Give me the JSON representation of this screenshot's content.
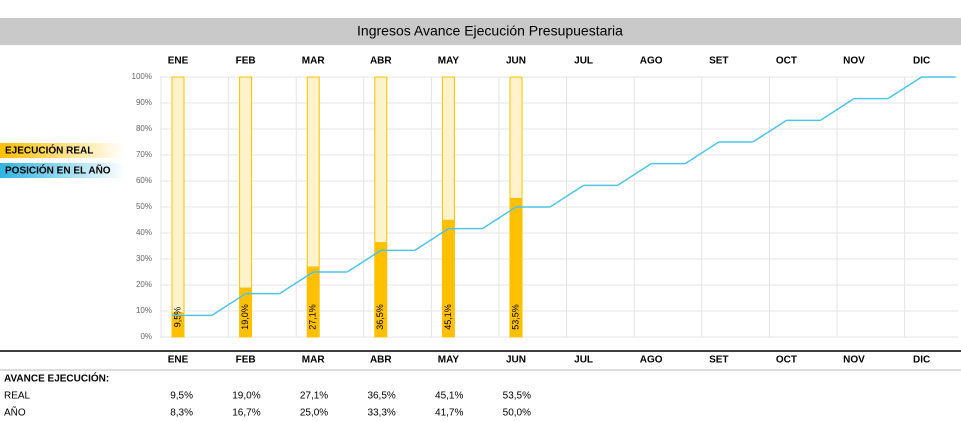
{
  "chart_data": {
    "type": "bar_line",
    "title": "Ingresos Avance Ejecución Presupuestaria",
    "categories": [
      "ENE",
      "FEB",
      "MAR",
      "ABR",
      "MAY",
      "JUN",
      "JUL",
      "AGO",
      "SET",
      "OCT",
      "NOV",
      "DIC"
    ],
    "series": [
      {
        "name": "EJECUCIÓN REAL",
        "color": "#ffc000",
        "values": [
          9.5,
          19.0,
          27.1,
          36.5,
          45.1,
          53.5,
          null,
          null,
          null,
          null,
          null,
          null
        ],
        "value_labels": [
          "9,5%",
          "19,0%",
          "27,1%",
          "36,5%",
          "45,1%",
          "53,5%",
          null,
          null,
          null,
          null,
          null,
          null
        ]
      },
      {
        "name": "POSICIÓN EN EL AÑO",
        "color": "#4fc3e8",
        "values": [
          8.3,
          16.7,
          25.0,
          33.3,
          41.7,
          50.0,
          58.3,
          66.7,
          75.0,
          83.3,
          91.7,
          100
        ]
      }
    ],
    "ylim": [
      0,
      100
    ],
    "yticks": [
      {
        "value": 0,
        "label": "0%"
      },
      {
        "value": 10,
        "label": "10%"
      },
      {
        "value": 20,
        "label": "20%"
      },
      {
        "value": 30,
        "label": "30%"
      },
      {
        "value": 40,
        "label": "40%"
      },
      {
        "value": 50,
        "label": "50%"
      },
      {
        "value": 60,
        "label": "60%"
      },
      {
        "value": 70,
        "label": "70%"
      },
      {
        "value": 80,
        "label": "80%"
      },
      {
        "value": 90,
        "label": "90%"
      },
      {
        "value": 100,
        "label": "100%"
      }
    ],
    "grid": true
  },
  "table": {
    "section": "AVANCE EJECUCIÓN:",
    "rows": [
      {
        "label": "REAL",
        "cells": [
          "9,5%",
          "19,0%",
          "27,1%",
          "36,5%",
          "45,1%",
          "53,5%"
        ]
      },
      {
        "label": "AÑO",
        "cells": [
          "8,3%",
          "16,7%",
          "25,0%",
          "33,3%",
          "41,7%",
          "50,0%"
        ]
      }
    ]
  }
}
